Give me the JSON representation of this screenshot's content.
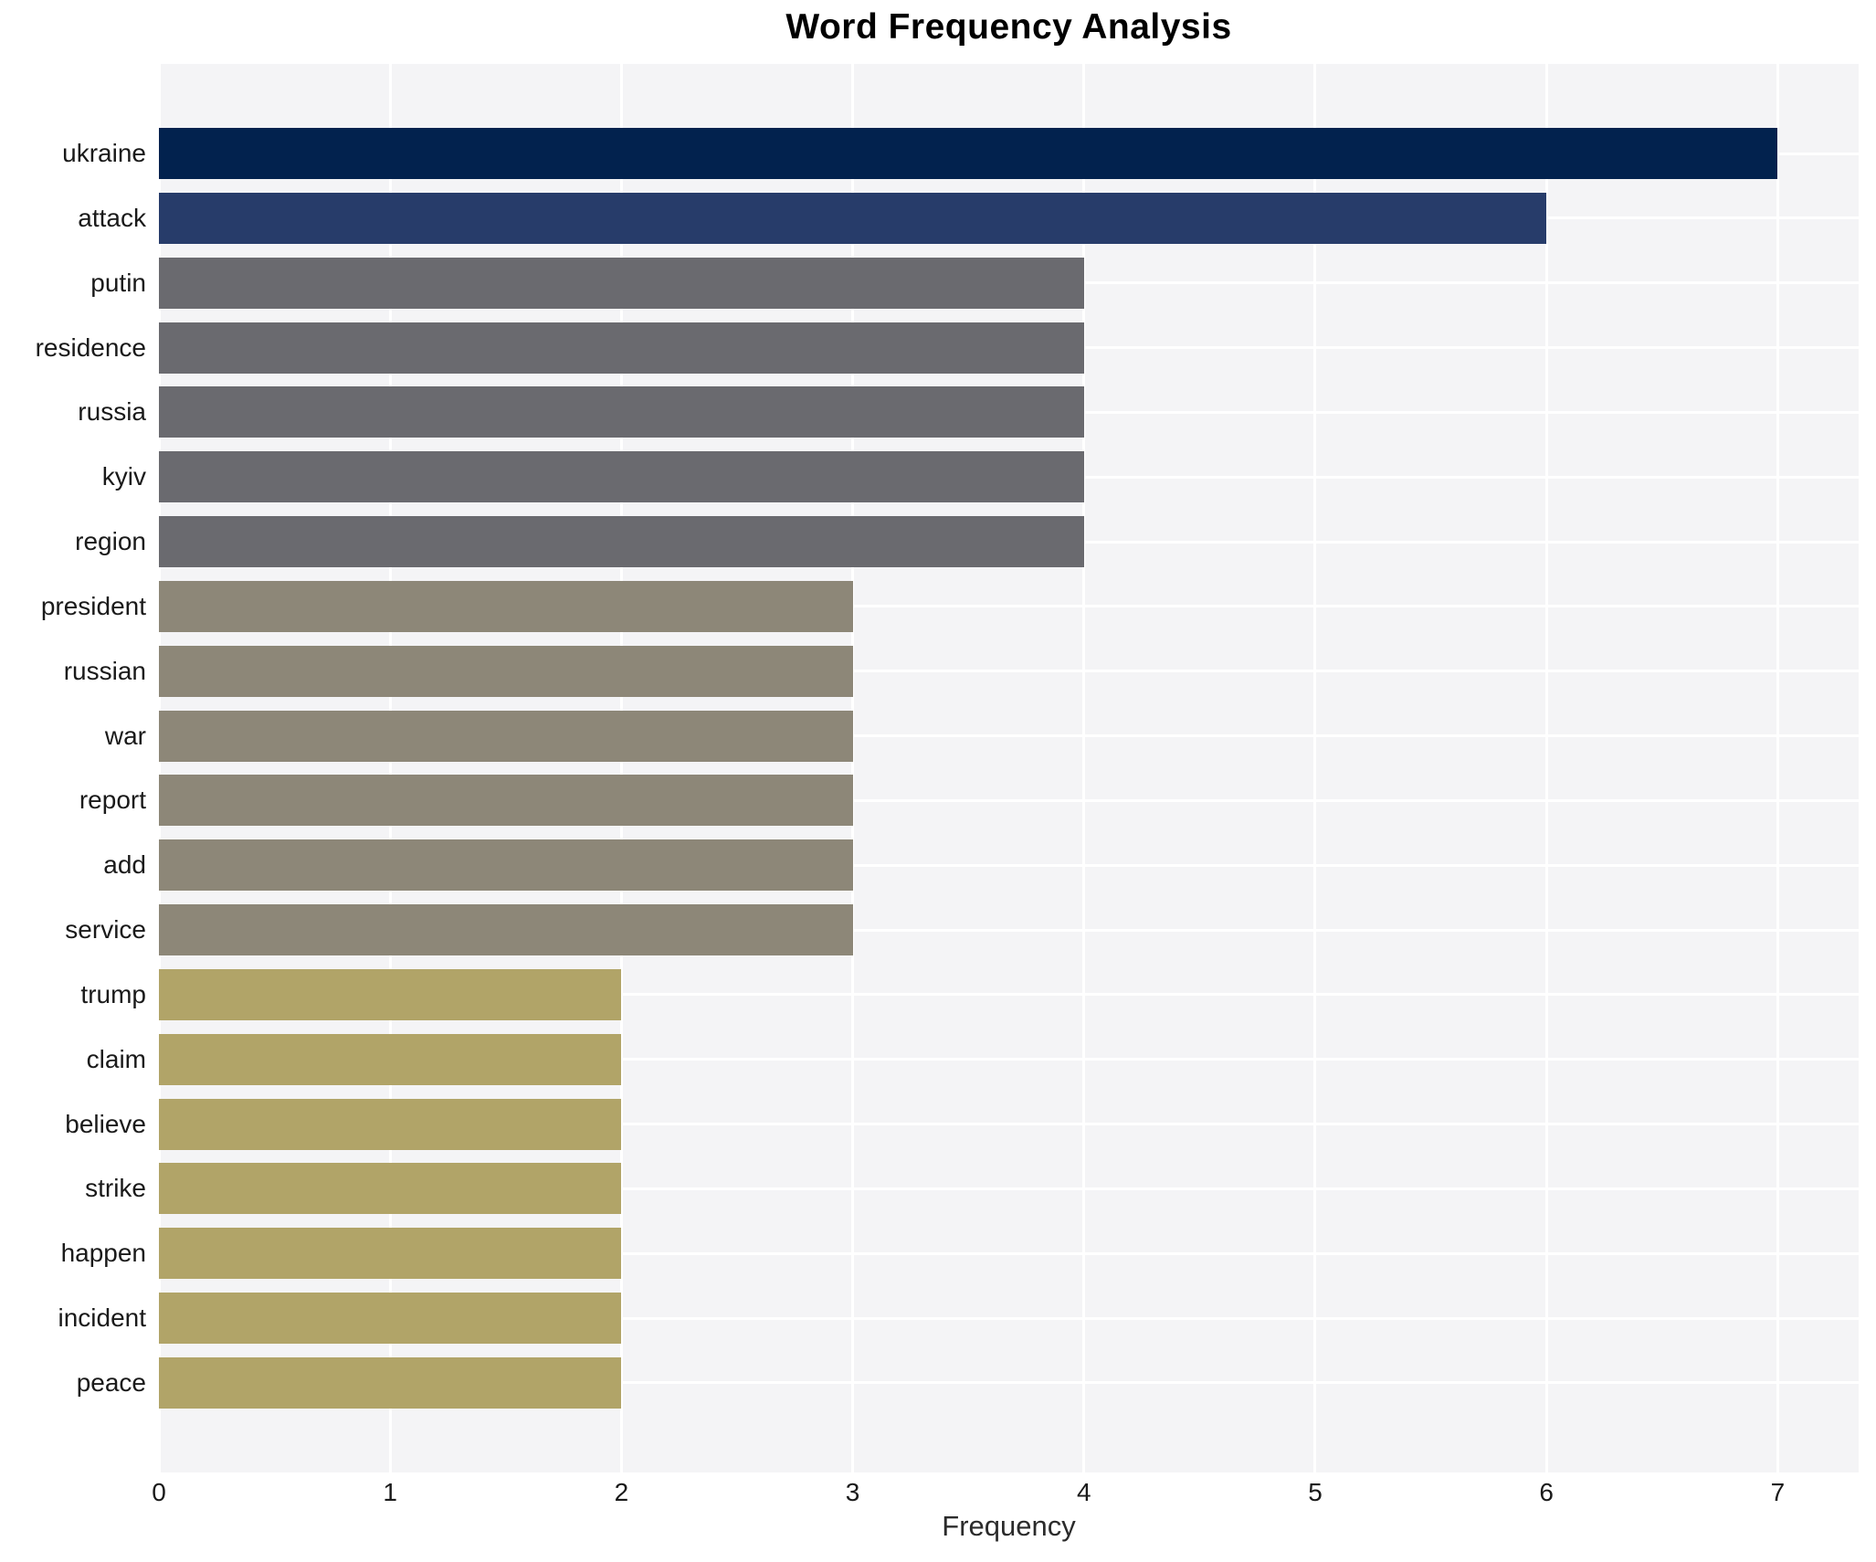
{
  "title": "Word Frequency Analysis",
  "chart_data": {
    "type": "bar",
    "orientation": "horizontal",
    "title": "Word Frequency Analysis",
    "xlabel": "Frequency",
    "ylabel": "",
    "categories": [
      "ukraine",
      "attack",
      "putin",
      "residence",
      "russia",
      "kyiv",
      "region",
      "president",
      "russian",
      "war",
      "report",
      "add",
      "service",
      "trump",
      "claim",
      "believe",
      "strike",
      "happen",
      "incident",
      "peace"
    ],
    "values": [
      7,
      6,
      4,
      4,
      4,
      4,
      4,
      3,
      3,
      3,
      3,
      3,
      3,
      2,
      2,
      2,
      2,
      2,
      2,
      2
    ],
    "bar_colors": [
      "#02224e",
      "#273c6a",
      "#6a6a6f",
      "#6a6a6f",
      "#6a6a6f",
      "#6a6a6f",
      "#6a6a6f",
      "#8d8778",
      "#8d8778",
      "#8d8778",
      "#8d8778",
      "#8d8778",
      "#8d8778",
      "#b1a468",
      "#b1a468",
      "#b1a468",
      "#b1a468",
      "#b1a468",
      "#b1a468",
      "#b1a468"
    ],
    "xticks": [
      0,
      1,
      2,
      3,
      4,
      5,
      6,
      7
    ],
    "xlim": [
      0,
      7.35
    ],
    "grid": true,
    "legend": false,
    "plot_background": "#f4f4f6",
    "gridline_color": "#ffffff",
    "tick_text_color": "#1a1a1a"
  }
}
